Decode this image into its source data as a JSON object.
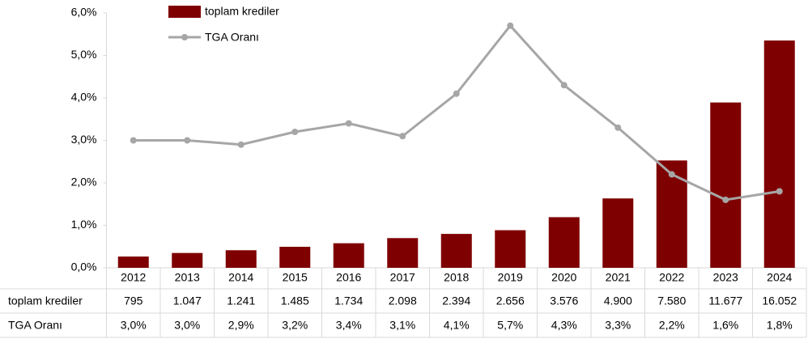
{
  "chart_data": {
    "type": "bar_line",
    "categories": [
      "2012",
      "2013",
      "2014",
      "2015",
      "2016",
      "2017",
      "2018",
      "2019",
      "2020",
      "2021",
      "2022",
      "2023",
      "2024"
    ],
    "series": [
      {
        "name": "toplam krediler",
        "color": "#7f0000",
        "axis": "y2",
        "values": [
          795,
          1047,
          1241,
          1485,
          1734,
          2098,
          2394,
          2656,
          3576,
          4900,
          7580,
          11677,
          16052
        ],
        "value_labels": [
          "795",
          "1.047",
          "1.241",
          "1.485",
          "1.734",
          "2.098",
          "2.394",
          "2.656",
          "3.576",
          "4.900",
          "7.580",
          "11.677",
          "16.052"
        ]
      },
      {
        "name": "TGA Oranı",
        "color": "#a6a6a6",
        "values": [
          3.0,
          3.0,
          2.9,
          3.2,
          3.4,
          3.1,
          4.1,
          5.7,
          4.3,
          3.3,
          2.2,
          1.6,
          1.8
        ],
        "value_labels": [
          "3,0%",
          "3,0%",
          "2,9%",
          "3,2%",
          "3,4%",
          "3,1%",
          "4,1%",
          "5,7%",
          "4,3%",
          "3,3%",
          "2,2%",
          "1,6%",
          "1,8%"
        ]
      }
    ],
    "ylim": [
      0,
      6
    ],
    "yticks": [
      {
        "value": 0,
        "label": "0,0%"
      },
      {
        "value": 1,
        "label": "1,0%"
      },
      {
        "value": 2,
        "label": "2,0%"
      },
      {
        "value": 3,
        "label": "3,0%"
      },
      {
        "value": 4,
        "label": "4,0%"
      },
      {
        "value": 5,
        "label": "5,0%"
      },
      {
        "value": 6,
        "label": "6,0%"
      }
    ],
    "y2lim": [
      0,
      18000
    ],
    "grid": false,
    "legend": "top-left"
  }
}
